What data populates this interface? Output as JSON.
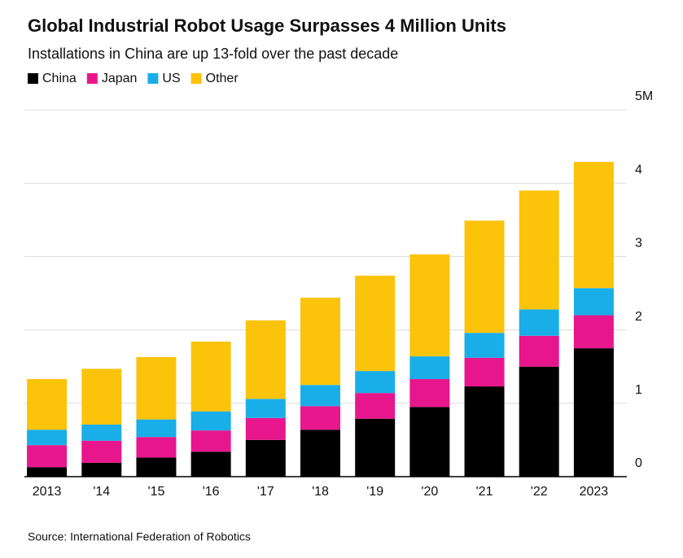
{
  "chart_data": {
    "type": "stacked-bar",
    "title": "Global Industrial Robot Usage Surpasses 4 Million Units",
    "subtitle": "Installations in China are up 13-fold over the past decade",
    "source": "Source: International Federation of Robotics",
    "categories": [
      "2013",
      "'14",
      "'15",
      "'16",
      "'17",
      "'18",
      "'19",
      "'20",
      "'21",
      "'22",
      "2023"
    ],
    "series": [
      {
        "name": "China",
        "color": "#000000",
        "values": [
          0.13,
          0.19,
          0.26,
          0.34,
          0.5,
          0.64,
          0.79,
          0.95,
          1.23,
          1.5,
          1.75
        ]
      },
      {
        "name": "Japan",
        "color": "#e8168c",
        "values": [
          0.3,
          0.3,
          0.28,
          0.29,
          0.3,
          0.32,
          0.35,
          0.38,
          0.39,
          0.42,
          0.45
        ]
      },
      {
        "name": "US",
        "color": "#1aaee8",
        "values": [
          0.21,
          0.22,
          0.24,
          0.26,
          0.26,
          0.29,
          0.3,
          0.31,
          0.34,
          0.36,
          0.37
        ]
      },
      {
        "name": "Other",
        "color": "#fcc30b",
        "values": [
          0.69,
          0.76,
          0.85,
          0.95,
          1.07,
          1.19,
          1.3,
          1.39,
          1.53,
          1.62,
          1.72
        ]
      }
    ],
    "ylim": [
      0,
      5
    ],
    "yticks": [
      0,
      1,
      2,
      3,
      4,
      {
        "value": 5,
        "label": "5M"
      }
    ],
    "grid": true
  }
}
